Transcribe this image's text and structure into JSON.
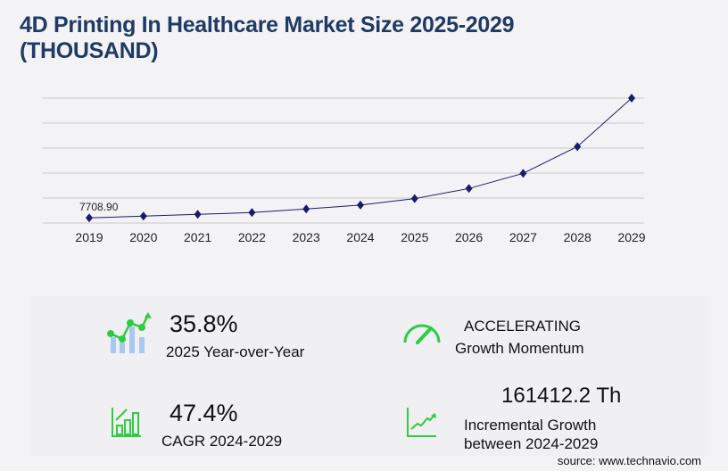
{
  "title": "4D Printing In Healthcare Market Size 2025-2029 (THOUSAND)",
  "chart_data": {
    "type": "line",
    "title": "4D Printing In Healthcare Market Size 2025-2029 (THOUSAND)",
    "categories": [
      "2019",
      "2020",
      "2021",
      "2022",
      "2023",
      "2024",
      "2025",
      "2026",
      "2027",
      "2028",
      "2029"
    ],
    "values": [
      7708.9,
      10360,
      13060,
      15750,
      21130,
      27087,
      36784,
      52090,
      74970,
      115350,
      188499
    ],
    "data_labels": [
      "7708.90"
    ],
    "ylim": [
      0,
      188499
    ],
    "grid": true,
    "line_color": "#1a1a6e"
  },
  "stats": {
    "yoy_value": "35.8%",
    "yoy_label": "2025 Year-over-Year",
    "momentum_value": "ACCELERATING",
    "momentum_label": "Growth Momentum",
    "cagr_value": "47.4%",
    "cagr_label": "CAGR 2024-2029",
    "incremental_value": "161412.2 Th",
    "incremental_label_1": "Incremental Growth",
    "incremental_label_2": "between 2024-2029"
  },
  "source": "source: www.technavio.com",
  "colors": {
    "accent": "#2ecc40",
    "title": "#1f3a64",
    "bars": "#a9c8f0"
  }
}
